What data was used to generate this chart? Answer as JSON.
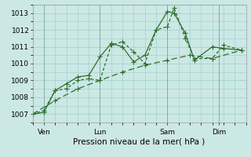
{
  "xlabel": "Pression niveau de la mer( hPa )",
  "bg_color": "#cce8e4",
  "grid_color": "#99cccc",
  "line_color": "#2d6e2d",
  "ylim": [
    1006.5,
    1013.5
  ],
  "xlim": [
    0,
    9.5
  ],
  "xtick_labels": [
    "Ven",
    "Lun",
    "Sam",
    "Dim"
  ],
  "xtick_positions": [
    0.5,
    3.0,
    6.0,
    8.3
  ],
  "vline_positions": [
    0.5,
    3.0,
    6.0,
    8.3
  ],
  "ytick_values": [
    1007,
    1008,
    1009,
    1010,
    1011,
    1012,
    1013
  ],
  "series1_x": [
    0.0,
    0.5,
    1.0,
    1.5,
    2.0,
    2.5,
    3.0,
    3.5,
    4.0,
    4.5,
    5.0,
    5.5,
    6.0,
    6.3,
    6.8,
    7.2,
    8.0,
    8.5,
    9.3
  ],
  "series1_y": [
    1007.0,
    1007.2,
    1008.4,
    1008.5,
    1009.0,
    1009.1,
    1009.0,
    1011.1,
    1011.3,
    1010.7,
    1010.0,
    1012.0,
    1012.2,
    1013.3,
    1011.5,
    1010.3,
    1010.3,
    1011.1,
    1010.8
  ],
  "series2_x": [
    0.0,
    0.5,
    1.0,
    1.5,
    2.0,
    2.5,
    3.0,
    3.5,
    4.0,
    4.5,
    5.0,
    5.5,
    6.0,
    6.3,
    6.8,
    7.2,
    8.0,
    8.5,
    9.3
  ],
  "series2_y": [
    1007.0,
    1007.1,
    1008.4,
    1008.8,
    1009.2,
    1009.3,
    1010.4,
    1011.2,
    1011.0,
    1010.1,
    1010.5,
    1012.0,
    1013.1,
    1013.0,
    1011.8,
    1010.2,
    1011.0,
    1010.9,
    1010.8
  ],
  "series3_x": [
    0.0,
    1.0,
    2.0,
    3.0,
    4.0,
    5.0,
    6.0,
    7.0,
    8.0,
    9.3
  ],
  "series3_y": [
    1007.0,
    1007.8,
    1008.5,
    1009.0,
    1009.5,
    1009.9,
    1010.2,
    1010.5,
    1010.3,
    1010.8
  ],
  "marker_size": 3,
  "linewidth1": 0.9,
  "linewidth2": 0.9,
  "linewidth3": 0.9,
  "font_size_tick": 6.5,
  "font_size_xlabel": 7.5
}
